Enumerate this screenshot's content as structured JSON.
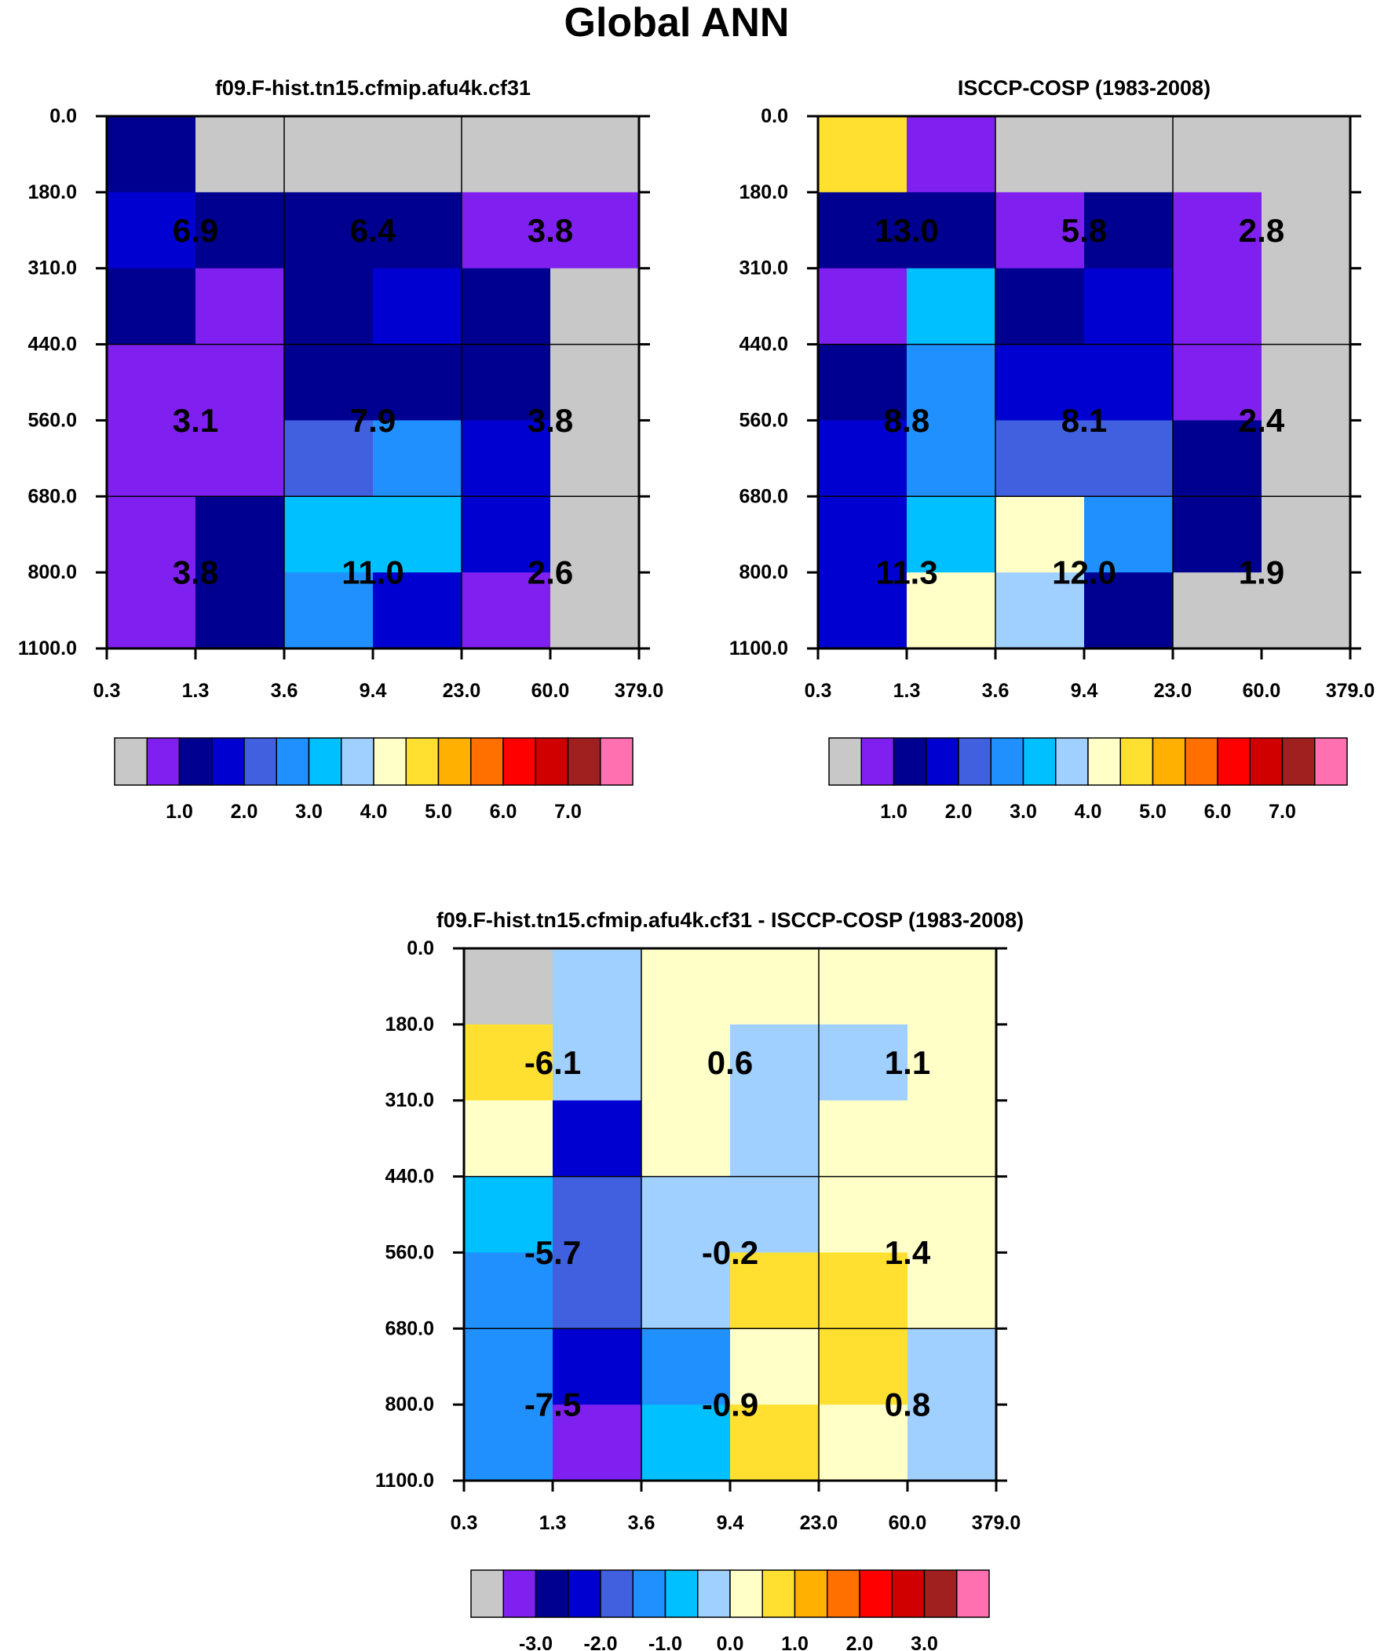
{
  "figure": {
    "title": "Global ANN"
  },
  "colors": {
    "palette": [
      "#c8c8c8",
      "#8020f0",
      "#000090",
      "#0000d0",
      "#4060e0",
      "#2090ff",
      "#00c0ff",
      "#a0d0ff",
      "#ffffc8",
      "#ffe030",
      "#ffb000",
      "#ff7000",
      "#ff0000",
      "#d00000",
      "#a02020",
      "#ff70b0"
    ]
  },
  "chart_data": [
    {
      "type": "heatmap",
      "title": "f09.F-hist.tn15.cfmip.afu4k.cf31",
      "x_ticks": [
        "0.3",
        "1.3",
        "3.6",
        "9.4",
        "23.0",
        "60.0",
        "379.0"
      ],
      "y_ticks": [
        "0.0",
        "180.0",
        "310.0",
        "440.0",
        "560.0",
        "680.0",
        "800.0",
        "1100.0"
      ],
      "cell_color_index": [
        [
          3,
          1,
          1,
          1,
          1,
          1
        ],
        [
          4,
          3,
          3,
          3,
          2,
          2
        ],
        [
          3,
          2,
          3,
          4,
          3,
          1
        ],
        [
          2,
          2,
          3,
          3,
          3,
          1
        ],
        [
          2,
          2,
          5,
          6,
          4,
          1
        ],
        [
          2,
          3,
          7,
          7,
          4,
          1
        ],
        [
          2,
          3,
          6,
          4,
          2,
          1
        ]
      ],
      "groups": [
        {
          "label": "6.9",
          "col": 0,
          "row": 0
        },
        {
          "label": "6.4",
          "col": 1,
          "row": 0
        },
        {
          "label": "3.8",
          "col": 2,
          "row": 0
        },
        {
          "label": "3.1",
          "col": 0,
          "row": 1
        },
        {
          "label": "7.9",
          "col": 1,
          "row": 1
        },
        {
          "label": "3.8",
          "col": 2,
          "row": 1
        },
        {
          "label": "3.8",
          "col": 0,
          "row": 2
        },
        {
          "label": "11.0",
          "col": 1,
          "row": 2
        },
        {
          "label": "2.6",
          "col": 2,
          "row": 2
        }
      ],
      "colorbar": {
        "tick_labels": [
          "1.0",
          "2.0",
          "3.0",
          "4.0",
          "5.0",
          "6.0",
          "7.0"
        ]
      }
    },
    {
      "type": "heatmap",
      "title": "ISCCP-COSP (1983-2008)",
      "x_ticks": [
        "0.3",
        "1.3",
        "3.6",
        "9.4",
        "23.0",
        "60.0",
        "379.0"
      ],
      "y_ticks": [
        "0.0",
        "180.0",
        "310.0",
        "440.0",
        "560.0",
        "680.0",
        "800.0",
        "1100.0"
      ],
      "cell_color_index": [
        [
          10,
          2,
          1,
          1,
          1,
          1
        ],
        [
          3,
          3,
          2,
          3,
          2,
          1
        ],
        [
          2,
          7,
          3,
          4,
          2,
          1
        ],
        [
          3,
          6,
          4,
          4,
          2,
          1
        ],
        [
          4,
          6,
          5,
          5,
          3,
          1
        ],
        [
          4,
          7,
          9,
          6,
          3,
          1
        ],
        [
          4,
          9,
          8,
          3,
          1,
          1
        ]
      ],
      "groups": [
        {
          "label": "13.0",
          "col": 0,
          "row": 0
        },
        {
          "label": "5.8",
          "col": 1,
          "row": 0
        },
        {
          "label": "2.8",
          "col": 2,
          "row": 0
        },
        {
          "label": "8.8",
          "col": 0,
          "row": 1
        },
        {
          "label": "8.1",
          "col": 1,
          "row": 1
        },
        {
          "label": "2.4",
          "col": 2,
          "row": 1
        },
        {
          "label": "11.3",
          "col": 0,
          "row": 2
        },
        {
          "label": "12.0",
          "col": 1,
          "row": 2
        },
        {
          "label": "1.9",
          "col": 2,
          "row": 2
        }
      ],
      "colorbar": {
        "tick_labels": [
          "1.0",
          "2.0",
          "3.0",
          "4.0",
          "5.0",
          "6.0",
          "7.0"
        ]
      }
    },
    {
      "type": "heatmap",
      "title": "f09.F-hist.tn15.cfmip.afu4k.cf31 - ISCCP-COSP (1983-2008)",
      "x_ticks": [
        "0.3",
        "1.3",
        "3.6",
        "9.4",
        "23.0",
        "60.0",
        "379.0"
      ],
      "y_ticks": [
        "0.0",
        "180.0",
        "310.0",
        "440.0",
        "560.0",
        "680.0",
        "800.0",
        "1100.0"
      ],
      "cell_color_index": [
        [
          1,
          8,
          9,
          9,
          9,
          9
        ],
        [
          10,
          8,
          9,
          8,
          8,
          9
        ],
        [
          9,
          4,
          9,
          8,
          9,
          9
        ],
        [
          7,
          5,
          8,
          8,
          9,
          9
        ],
        [
          6,
          5,
          8,
          10,
          10,
          9
        ],
        [
          6,
          4,
          6,
          9,
          10,
          8
        ],
        [
          6,
          2,
          7,
          10,
          9,
          8
        ]
      ],
      "groups": [
        {
          "label": "-6.1",
          "col": 0,
          "row": 0
        },
        {
          "label": "0.6",
          "col": 1,
          "row": 0
        },
        {
          "label": "1.1",
          "col": 2,
          "row": 0
        },
        {
          "label": "-5.7",
          "col": 0,
          "row": 1
        },
        {
          "label": "-0.2",
          "col": 1,
          "row": 1
        },
        {
          "label": "1.4",
          "col": 2,
          "row": 1
        },
        {
          "label": "-7.5",
          "col": 0,
          "row": 2
        },
        {
          "label": "-0.9",
          "col": 1,
          "row": 2
        },
        {
          "label": "0.8",
          "col": 2,
          "row": 2
        }
      ],
      "colorbar": {
        "tick_labels": [
          "-3.0",
          "-2.0",
          "-1.0",
          "0.0",
          "1.0",
          "2.0",
          "3.0"
        ]
      }
    }
  ]
}
